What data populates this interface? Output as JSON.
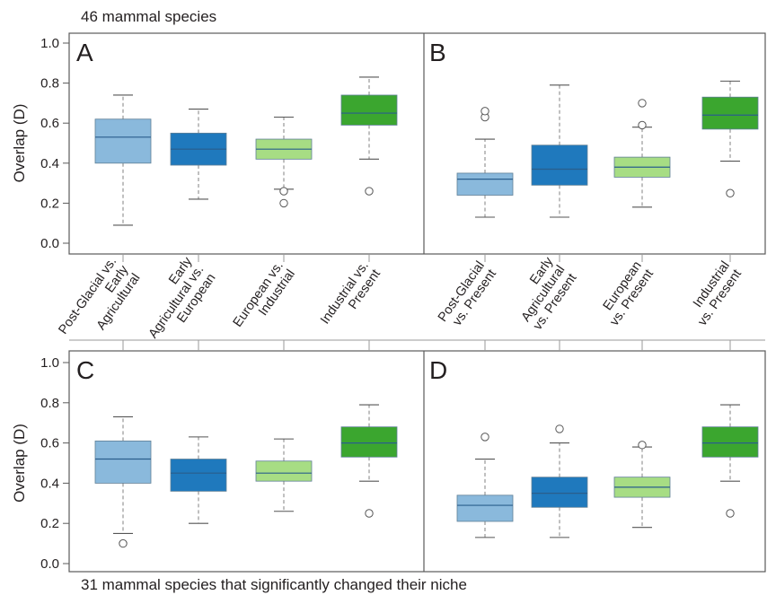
{
  "header": {
    "top_caption": "46 mammal species",
    "bottom_caption": "31 mammal species that significantly changed their niche"
  },
  "ylabel": "Overlap (D)",
  "yticks": [
    "0.0",
    "0.2",
    "0.4",
    "0.6",
    "0.8",
    "1.0"
  ],
  "colors": {
    "light_blue": "#8ab9dc",
    "dark_blue": "#1f79bd",
    "light_green": "#a7dd84",
    "dark_green": "#3ba62f",
    "median_line": "#2a5e8c",
    "whisker": "#8c8c8c",
    "axis": "#5a5a5a"
  },
  "chart_data": [
    {
      "panel": "A",
      "type": "box",
      "ylim": [
        0,
        1.0
      ],
      "ylabel": "Overlap (D)",
      "categories": [
        "Post-Glacial vs. Early Agricultural",
        "Early Agricultural vs. European",
        "European vs. Industrial",
        "Industrial vs. Present"
      ],
      "tick_labels": [
        [
          "Post-Glacial vs.",
          "Early",
          "Agricultural"
        ],
        [
          "Early",
          "Agricultural vs.",
          "European"
        ],
        [
          "European vs.",
          "Industrial"
        ],
        [
          "Industrial vs.",
          "Present"
        ]
      ],
      "boxes": [
        {
          "min": 0.09,
          "q1": 0.4,
          "median": 0.53,
          "q3": 0.62,
          "max": 0.74,
          "outliers": []
        },
        {
          "min": 0.22,
          "q1": 0.39,
          "median": 0.47,
          "q3": 0.55,
          "max": 0.67,
          "outliers": []
        },
        {
          "min": 0.27,
          "q1": 0.42,
          "median": 0.47,
          "q3": 0.52,
          "max": 0.63,
          "outliers": [
            0.26,
            0.2
          ]
        },
        {
          "min": 0.42,
          "q1": 0.59,
          "median": 0.65,
          "q3": 0.74,
          "max": 0.83,
          "outliers": [
            0.26
          ]
        }
      ]
    },
    {
      "panel": "B",
      "type": "box",
      "ylim": [
        0,
        1.0
      ],
      "categories": [
        "Post-Glacial vs. Present",
        "Early Agricultural vs. Present",
        "European vs. Present",
        "Industrial vs. Present"
      ],
      "tick_labels": [
        [
          "Post-Glacial",
          "vs. Present"
        ],
        [
          "Early",
          "Agricultural",
          "vs. Present"
        ],
        [
          "European",
          "vs. Present"
        ],
        [
          "Industrial",
          "vs. Present"
        ]
      ],
      "boxes": [
        {
          "min": 0.13,
          "q1": 0.24,
          "median": 0.32,
          "q3": 0.35,
          "max": 0.52,
          "outliers": [
            0.63,
            0.66
          ]
        },
        {
          "min": 0.13,
          "q1": 0.29,
          "median": 0.37,
          "q3": 0.49,
          "max": 0.79,
          "outliers": []
        },
        {
          "min": 0.18,
          "q1": 0.33,
          "median": 0.38,
          "q3": 0.43,
          "max": 0.58,
          "outliers": [
            0.59,
            0.7
          ]
        },
        {
          "min": 0.41,
          "q1": 0.57,
          "median": 0.64,
          "q3": 0.73,
          "max": 0.81,
          "outliers": [
            0.25
          ]
        }
      ]
    },
    {
      "panel": "C",
      "type": "box",
      "ylim": [
        0,
        1.0
      ],
      "ylabel": "Overlap (D)",
      "categories": [
        "Post-Glacial vs. Early Agricultural",
        "Early Agricultural vs. European",
        "European vs. Industrial",
        "Industrial vs. Present"
      ],
      "boxes": [
        {
          "min": 0.15,
          "q1": 0.4,
          "median": 0.52,
          "q3": 0.61,
          "max": 0.73,
          "outliers": [
            0.1
          ]
        },
        {
          "min": 0.2,
          "q1": 0.36,
          "median": 0.45,
          "q3": 0.52,
          "max": 0.63,
          "outliers": []
        },
        {
          "min": 0.26,
          "q1": 0.41,
          "median": 0.45,
          "q3": 0.51,
          "max": 0.62,
          "outliers": []
        },
        {
          "min": 0.41,
          "q1": 0.53,
          "median": 0.6,
          "q3": 0.68,
          "max": 0.79,
          "outliers": [
            0.25
          ]
        }
      ]
    },
    {
      "panel": "D",
      "type": "box",
      "ylim": [
        0,
        1.0
      ],
      "categories": [
        "Post-Glacial vs. Present",
        "Early Agricultural vs. Present",
        "European vs. Present",
        "Industrial vs. Present"
      ],
      "boxes": [
        {
          "min": 0.13,
          "q1": 0.21,
          "median": 0.29,
          "q3": 0.34,
          "max": 0.52,
          "outliers": [
            0.63
          ]
        },
        {
          "min": 0.13,
          "q1": 0.28,
          "median": 0.35,
          "q3": 0.43,
          "max": 0.6,
          "outliers": [
            0.67
          ]
        },
        {
          "min": 0.18,
          "q1": 0.33,
          "median": 0.38,
          "q3": 0.43,
          "max": 0.58,
          "outliers": [
            0.59
          ]
        },
        {
          "min": 0.41,
          "q1": 0.53,
          "median": 0.6,
          "q3": 0.68,
          "max": 0.79,
          "outliers": [
            0.25
          ]
        }
      ]
    }
  ]
}
